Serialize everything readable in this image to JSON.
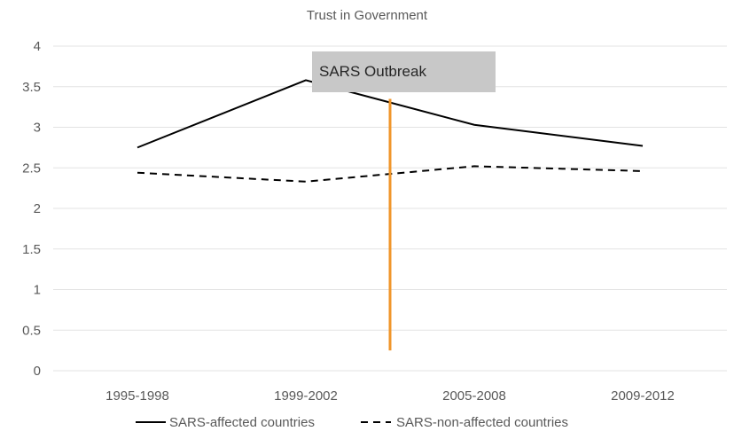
{
  "chart_data": {
    "type": "line",
    "title": "Trust in Government",
    "xlabel": "",
    "ylabel": "",
    "categories": [
      "1995-1998",
      "1999-2002",
      "2005-2008",
      "2009-2012"
    ],
    "yticks": [
      "0",
      "0.5",
      "1",
      "1.5",
      "2",
      "2.5",
      "3",
      "3.5",
      "4"
    ],
    "ylim": [
      0,
      4
    ],
    "grid": true,
    "legend_position": "bottom",
    "series": [
      {
        "name": "SARS-affected countries",
        "values": [
          2.75,
          3.58,
          3.03,
          2.77
        ],
        "style": "solid",
        "color": "#000000"
      },
      {
        "name": "SARS-non-affected countries",
        "values": [
          2.44,
          2.33,
          2.52,
          2.46
        ],
        "style": "dashed",
        "color": "#000000"
      }
    ],
    "annotation": {
      "text": "SARS Outbreak",
      "box_color": "#c8c8c8",
      "line_color": "#f0962a",
      "x_position_between": [
        "1999-2002",
        "2005-2008"
      ],
      "line_from_y": 0.25,
      "line_to_y": 3.35
    }
  }
}
